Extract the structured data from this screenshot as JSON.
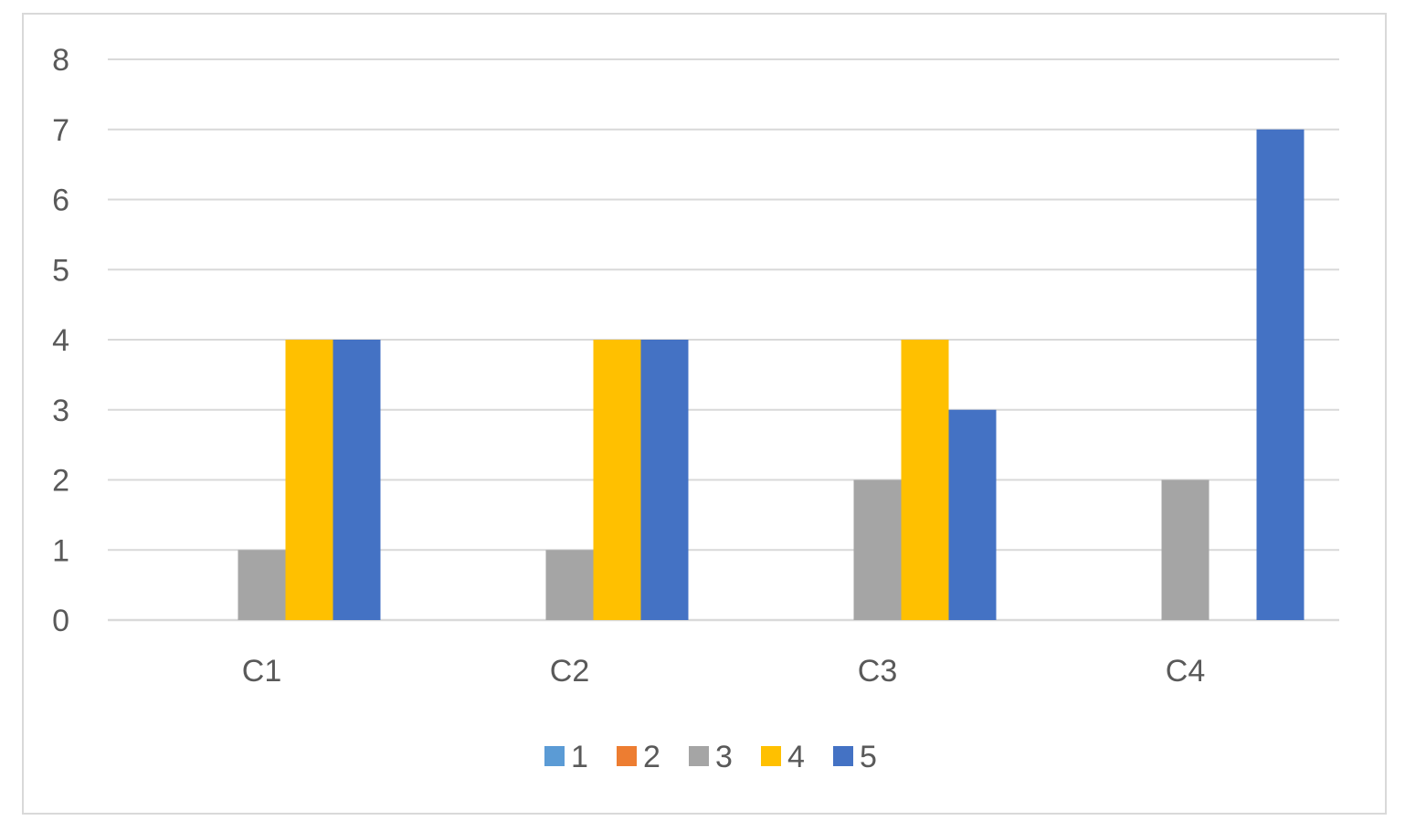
{
  "chart_data": {
    "type": "bar",
    "categories": [
      "C1",
      "C2",
      "C3",
      "C4"
    ],
    "series": [
      {
        "name": "1",
        "values": [
          0,
          0,
          0,
          0
        ],
        "color": "#5B9BD5"
      },
      {
        "name": "2",
        "values": [
          0,
          0,
          0,
          0
        ],
        "color": "#ED7D31"
      },
      {
        "name": "3",
        "values": [
          1,
          1,
          2,
          2
        ],
        "color": "#A5A5A5"
      },
      {
        "name": "4",
        "values": [
          4,
          4,
          4,
          0
        ],
        "color": "#FFC000"
      },
      {
        "name": "5",
        "values": [
          4,
          4,
          3,
          7
        ],
        "color": "#4472C4"
      }
    ],
    "y_ticks": [
      "0",
      "1",
      "2",
      "3",
      "4",
      "5",
      "6",
      "7",
      "8"
    ],
    "ylim": [
      0,
      8
    ],
    "grid": true,
    "legend_position": "bottom",
    "title": "",
    "xlabel": "",
    "ylabel": ""
  }
}
